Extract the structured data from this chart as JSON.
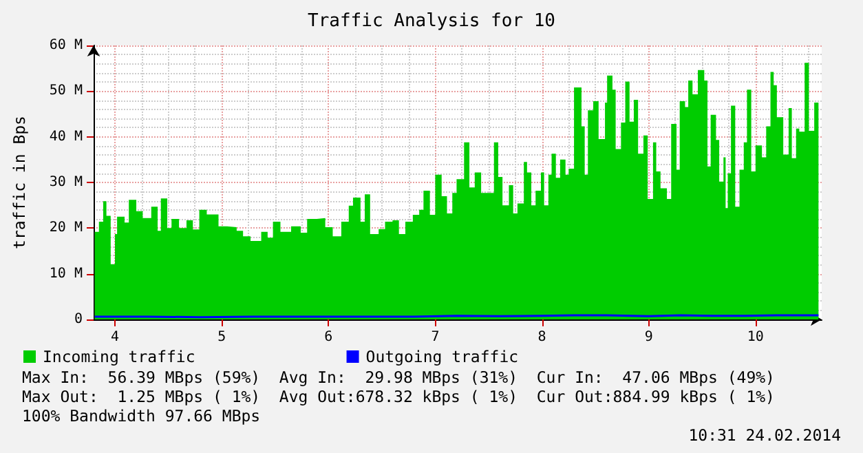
{
  "chart_data": {
    "type": "area",
    "title": "Traffic Analysis for 10",
    "ylabel": "traffic in Bps",
    "x": [
      3.81,
      3.85,
      3.89,
      3.92,
      3.96,
      4.0,
      4.02,
      4.09,
      4.13,
      4.2,
      4.26,
      4.34,
      4.4,
      4.43,
      4.49,
      4.53,
      4.6,
      4.67,
      4.73,
      4.79,
      4.86,
      4.97,
      5.05,
      5.14,
      5.2,
      5.27,
      5.37,
      5.43,
      5.48,
      5.55,
      5.65,
      5.74,
      5.8,
      5.89,
      5.97,
      6.04,
      6.12,
      6.19,
      6.23,
      6.3,
      6.34,
      6.39,
      6.47,
      6.53,
      6.6,
      6.66,
      6.72,
      6.79,
      6.85,
      6.89,
      6.95,
      7.0,
      7.06,
      7.11,
      7.16,
      7.2,
      7.27,
      7.32,
      7.37,
      7.43,
      7.49,
      7.55,
      7.59,
      7.63,
      7.69,
      7.73,
      7.77,
      7.83,
      7.86,
      7.9,
      7.94,
      7.99,
      8.02,
      8.06,
      8.09,
      8.13,
      8.17,
      8.22,
      8.25,
      8.3,
      8.37,
      8.4,
      8.43,
      8.48,
      8.53,
      8.59,
      8.61,
      8.66,
      8.69,
      8.74,
      8.78,
      8.82,
      8.86,
      8.9,
      8.95,
      8.99,
      9.04,
      9.07,
      9.11,
      9.17,
      9.21,
      9.26,
      9.29,
      9.34,
      9.37,
      9.41,
      9.46,
      9.52,
      9.55,
      9.58,
      9.63,
      9.66,
      9.7,
      9.72,
      9.74,
      9.77,
      9.81,
      9.85,
      9.89,
      9.92,
      9.96,
      10.0,
      10.06,
      10.1,
      10.14,
      10.17,
      10.2,
      10.26,
      10.31,
      10.34,
      10.38,
      10.41,
      10.46,
      10.5,
      10.55,
      10.59
    ],
    "series": [
      {
        "name": "Incoming traffic",
        "color": "#00cc00",
        "values": [
          19.2,
          21.4,
          25.9,
          22.7,
          12.1,
          18.7,
          22.5,
          21.2,
          26.2,
          23.7,
          22.2,
          24.7,
          19.4,
          26.5,
          20,
          22,
          20,
          21.7,
          19.7,
          24,
          23,
          20.4,
          20.2,
          19.4,
          18.2,
          17.2,
          19.2,
          17.9,
          21.4,
          19.2,
          20.4,
          19,
          22,
          22.2,
          20.2,
          18.2,
          21.4,
          24.9,
          26.7,
          21.4,
          27.4,
          18.7,
          19.8,
          21.4,
          21.7,
          18.7,
          21.4,
          22.9,
          24,
          28.2,
          22.9,
          31.7,
          27,
          23.2,
          27.7,
          30.7,
          38.8,
          28.9,
          32.2,
          27.7,
          27.7,
          38.8,
          31.2,
          25,
          29.4,
          23.2,
          25.4,
          34.5,
          32.2,
          25,
          28.2,
          32.2,
          25,
          31.7,
          36.3,
          31,
          35,
          31.7,
          33,
          50.8,
          42.3,
          31.7,
          45.8,
          47.8,
          39.5,
          47.5,
          53.4,
          50.3,
          37.3,
          43.1,
          52.1,
          43.3,
          48.1,
          36.3,
          40.3,
          26.4,
          38.8,
          32.4,
          28.7,
          26.4,
          42.8,
          32.8,
          47.8,
          46.5,
          52.3,
          49.3,
          54.6,
          52.3,
          33.5,
          44.8,
          39.3,
          30.2,
          35.5,
          24.4,
          32,
          46.8,
          24.7,
          32.8,
          38.8,
          50.3,
          32.4,
          38.1,
          35.5,
          42.3,
          54.2,
          51.3,
          44.3,
          36.1,
          46.3,
          35.3,
          41.8,
          41.1,
          56.2,
          41.3,
          47.5,
          46.8
        ]
      },
      {
        "name": "Outgoing traffic",
        "type": "line",
        "color": "#0000ff",
        "x": [
          3.81,
          4.3,
          4.8,
          5.3,
          5.8,
          6.3,
          6.8,
          7.2,
          7.6,
          8.0,
          8.3,
          8.6,
          9.0,
          9.3,
          9.6,
          9.9,
          10.2,
          10.59
        ],
        "values": [
          0.6,
          0.6,
          0.5,
          0.6,
          0.6,
          0.6,
          0.6,
          0.8,
          0.7,
          0.8,
          0.9,
          0.9,
          0.7,
          0.9,
          0.8,
          0.8,
          0.9,
          0.9
        ]
      }
    ],
    "xlim": [
      3.8,
      10.62
    ],
    "xticks": [
      4,
      5,
      6,
      7,
      8,
      9,
      10
    ],
    "ylim": [
      0,
      60
    ],
    "yticks": [
      {
        "value": 0,
        "label": "0"
      },
      {
        "value": 10,
        "label": "10 M"
      },
      {
        "value": 20,
        "label": "20 M"
      },
      {
        "value": 30,
        "label": "30 M"
      },
      {
        "value": 40,
        "label": "40 M"
      },
      {
        "value": 50,
        "label": "50 M"
      },
      {
        "value": 60,
        "label": "60 M"
      }
    ],
    "grid": true,
    "legend": "bottom",
    "annotations": [
      "Max In:  56.39 MBps (59%)  Avg In:  29.98 MBps (31%)  Cur In:  47.06 MBps (49%)",
      "Max Out:  1.25 MBps ( 1%)  Avg Out:678.32 kBps ( 1%)  Cur Out:884.99 kBps ( 1%)",
      "100% Bandwidth 97.66 MBps",
      "10:31 24.02.2014"
    ]
  }
}
